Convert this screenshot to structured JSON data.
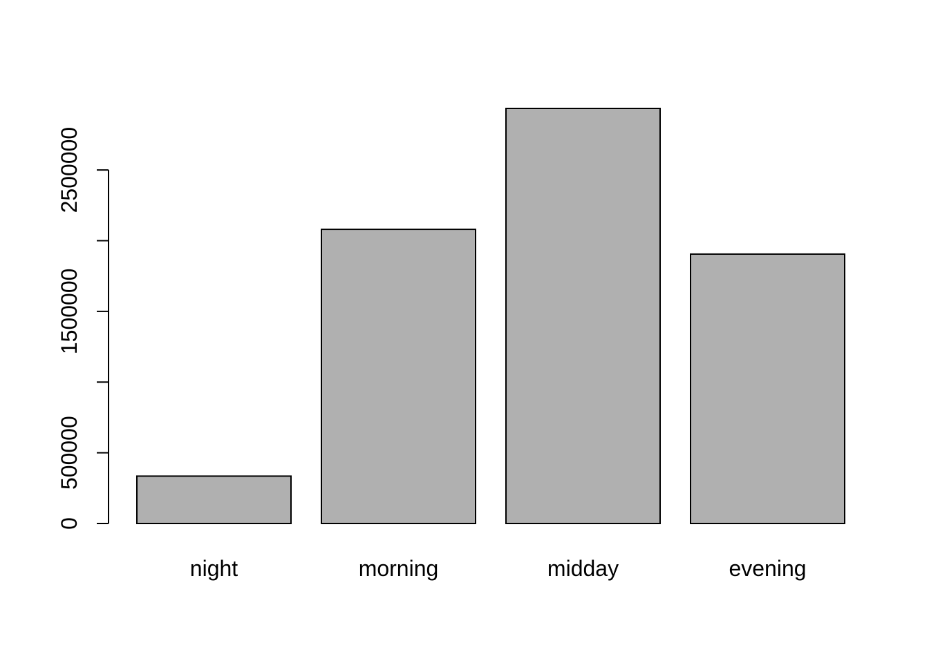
{
  "chart_data": {
    "type": "bar",
    "title": "",
    "xlabel": "",
    "ylabel": "",
    "categories": [
      "night",
      "morning",
      "midday",
      "evening"
    ],
    "values": [
      335000,
      2080000,
      2935000,
      1905000
    ],
    "ylim": [
      0,
      2935000
    ],
    "yticks": [
      0,
      500000,
      1000000,
      1500000,
      2000000,
      2500000
    ],
    "ytick_labels": [
      "0",
      "500000",
      "",
      "1500000",
      "",
      "2500000"
    ],
    "grid": false,
    "legend": "none",
    "colors": {
      "bar_fill": "#b0b0b0",
      "bar_stroke": "#000000",
      "axis": "#000000",
      "background": "#ffffff"
    }
  }
}
